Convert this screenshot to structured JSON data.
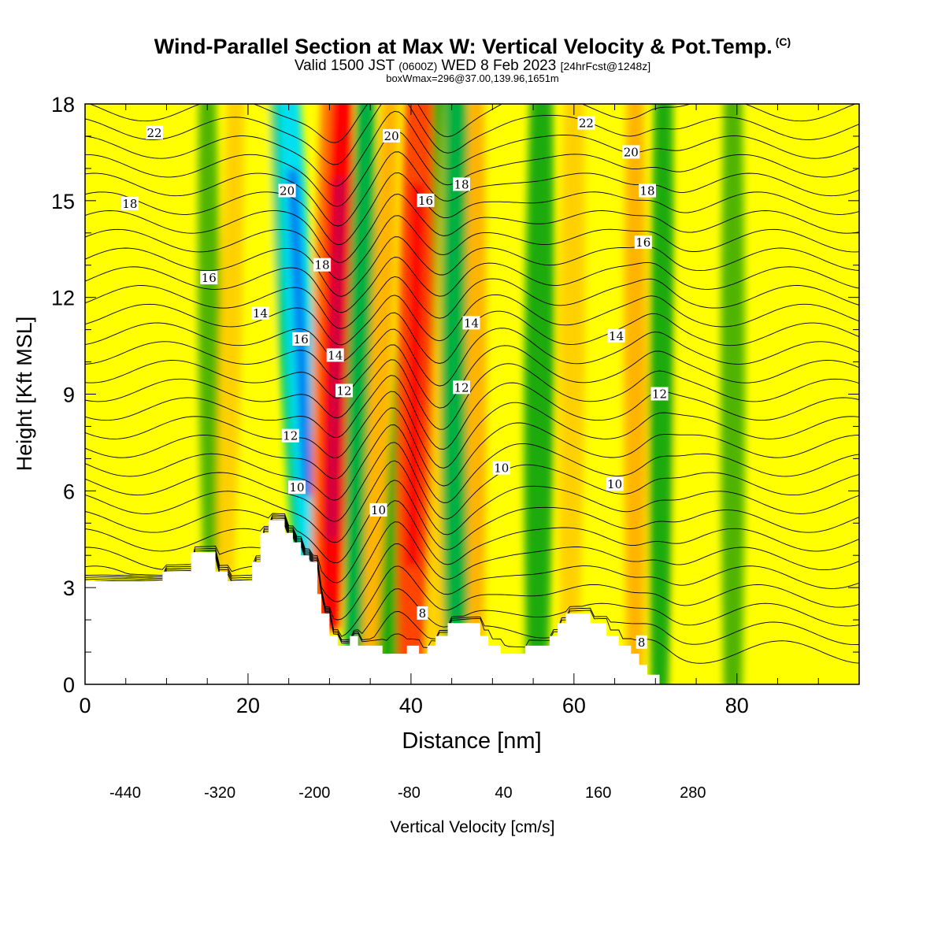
{
  "header": {
    "title": "Wind-Parallel Section at Max W: Vertical Velocity & Pot.Temp.",
    "copyright": "(C)",
    "valid_main": "Valid 1500 JST",
    "valid_utc": "(0600Z)",
    "valid_date": "WED 8 Feb 2023",
    "forecast": "[24hrFcst@1248z]",
    "boxinfo": "boxWmax=296@37.00,139.96,1651m"
  },
  "chart_data": {
    "type": "heatmap",
    "xlabel": "Distance [nm]",
    "ylabel": "Height [Kft MSL]",
    "xlim": [
      0,
      95
    ],
    "ylim": [
      0,
      18
    ],
    "x_ticks": [
      "0",
      "20",
      "40",
      "60",
      "80"
    ],
    "x_tick_values": [
      0,
      20,
      40,
      60,
      80
    ],
    "y_ticks": [
      "0",
      "3",
      "6",
      "9",
      "12",
      "15",
      "18"
    ],
    "y_tick_values": [
      0,
      3,
      6,
      9,
      12,
      15,
      18
    ],
    "colorbar": {
      "label": "Vertical Velocity [cm/s]",
      "ticks": [
        "-440",
        "-320",
        "-200",
        "-80",
        "40",
        "160",
        "280"
      ],
      "min": -440,
      "max": 320,
      "step": 40,
      "colors": [
        "#0000ee",
        "#0040f0",
        "#0078f0",
        "#00aaf0",
        "#00e0f0",
        "#00dcb8",
        "#00cc78",
        "#00b040",
        "#1eaa10",
        "#50b400",
        "#80cc00",
        "#c8e600",
        "#ffff00",
        "#ffd000",
        "#ffb400",
        "#ff9800",
        "#ff7800",
        "#ff4400",
        "#ff0000",
        "#cc0040",
        "#990060",
        "#660099"
      ]
    },
    "terrain_kft": [
      [
        0,
        3.2
      ],
      [
        9.5,
        3.2
      ],
      [
        9.5,
        3.5
      ],
      [
        13,
        3.5
      ],
      [
        13,
        4.1
      ],
      [
        16,
        4.1
      ],
      [
        16,
        3.5
      ],
      [
        17.5,
        3.5
      ],
      [
        17.5,
        3.2
      ],
      [
        20.5,
        3.2
      ],
      [
        20.5,
        3.8
      ],
      [
        21.5,
        3.8
      ],
      [
        21.5,
        4.7
      ],
      [
        22.5,
        4.7
      ],
      [
        22.5,
        5.1
      ],
      [
        24.5,
        5.1
      ],
      [
        24.5,
        4.7
      ],
      [
        25.5,
        4.7
      ],
      [
        25.5,
        4.4
      ],
      [
        26.5,
        4.4
      ],
      [
        26.5,
        4.0
      ],
      [
        27.5,
        4.0
      ],
      [
        27.5,
        3.8
      ],
      [
        28.5,
        3.8
      ],
      [
        28.5,
        2.8
      ],
      [
        29,
        2.8
      ],
      [
        29,
        2.2
      ],
      [
        30,
        2.2
      ],
      [
        30,
        1.5
      ],
      [
        31,
        1.5
      ],
      [
        31,
        1.2
      ],
      [
        32.5,
        1.2
      ],
      [
        32.5,
        1.5
      ],
      [
        33.5,
        1.5
      ],
      [
        33.5,
        1.2
      ],
      [
        36.5,
        1.2
      ],
      [
        36.5,
        0.95
      ],
      [
        39.5,
        0.95
      ],
      [
        39.5,
        1.2
      ],
      [
        41,
        1.2
      ],
      [
        41,
        0.95
      ],
      [
        42,
        0.95
      ],
      [
        42,
        1.2
      ],
      [
        43,
        1.2
      ],
      [
        43,
        1.5
      ],
      [
        44.5,
        1.5
      ],
      [
        44.5,
        1.9
      ],
      [
        48.5,
        1.9
      ],
      [
        48.5,
        1.5
      ],
      [
        49.5,
        1.5
      ],
      [
        49.5,
        1.2
      ],
      [
        51,
        1.2
      ],
      [
        51,
        0.95
      ],
      [
        54,
        0.95
      ],
      [
        54,
        1.2
      ],
      [
        57,
        1.2
      ],
      [
        57,
        1.5
      ],
      [
        58,
        1.5
      ],
      [
        58,
        1.9
      ],
      [
        59,
        1.9
      ],
      [
        59,
        2.2
      ],
      [
        62,
        2.2
      ],
      [
        62,
        1.9
      ],
      [
        64,
        1.9
      ],
      [
        64,
        1.5
      ],
      [
        65.5,
        1.5
      ],
      [
        65.5,
        1.2
      ],
      [
        67,
        1.2
      ],
      [
        67,
        0.95
      ],
      [
        68,
        0.95
      ],
      [
        68,
        0.6
      ],
      [
        69,
        0.6
      ],
      [
        69,
        0.3
      ],
      [
        70.5,
        0.3
      ],
      [
        70.5,
        0
      ],
      [
        95,
        0
      ]
    ],
    "velocity_bands": [
      {
        "x_base": 15.5,
        "x_top": 15,
        "w": 1.2,
        "v": -80
      },
      {
        "x_base": 17.2,
        "x_top": 18.5,
        "w": 1.2,
        "v": 80
      },
      {
        "x_base": 20.5,
        "x_top": 22.5,
        "w": 1.3,
        "v": 60
      },
      {
        "x_base": 27.0,
        "x_top": 24.0,
        "w": 1.6,
        "v": -170
      },
      {
        "x_base": 27.8,
        "x_top": 25.0,
        "w": 1.5,
        "v": -280
      },
      {
        "x_base": 29.3,
        "x_top": 30.5,
        "w": 1.7,
        "v": 220
      },
      {
        "x_base": 30.0,
        "x_top": 31.6,
        "w": 1.5,
        "v": 300
      },
      {
        "x_base": 33.0,
        "x_top": 34.5,
        "w": 1.4,
        "v": -150
      },
      {
        "x_base": 35.0,
        "x_top": 37.5,
        "w": 1.2,
        "v": 120
      },
      {
        "x_base": 37.5,
        "x_top": 43.0,
        "w": 2.0,
        "v": -100
      },
      {
        "x_base": 40.0,
        "x_top": 41.0,
        "w": 1.9,
        "v": 250
      },
      {
        "x_base": 43.0,
        "x_top": 45.0,
        "w": 1.1,
        "v": 100
      },
      {
        "x_base": 45.5,
        "x_top": 45.5,
        "w": 1.6,
        "v": -160
      },
      {
        "x_base": 48.0,
        "x_top": 48.0,
        "w": 1.1,
        "v": 120
      },
      {
        "x_base": 55.5,
        "x_top": 56.0,
        "w": 1.6,
        "v": -110
      },
      {
        "x_base": 59.5,
        "x_top": 60.0,
        "w": 1.4,
        "v": 80
      },
      {
        "x_base": 67.5,
        "x_top": 67.5,
        "w": 1.2,
        "v": 140
      },
      {
        "x_base": 70.5,
        "x_top": 71.0,
        "w": 1.3,
        "v": -90
      },
      {
        "x_base": 74.0,
        "x_top": 75.0,
        "w": 1.5,
        "v": 70
      },
      {
        "x_base": 79.5,
        "x_top": 79.5,
        "w": 1.3,
        "v": -60
      },
      {
        "x_base": 84.0,
        "x_top": 84.5,
        "w": 1.5,
        "v": 60
      },
      {
        "x_base": 92.0,
        "x_top": 92.0,
        "w": 1.5,
        "v": 70
      }
    ],
    "contour_labels": [
      {
        "text": "22",
        "x": 8.5,
        "y": 17.1
      },
      {
        "text": "18",
        "x": 5.5,
        "y": 14.9
      },
      {
        "text": "16",
        "x": 15.2,
        "y": 12.6
      },
      {
        "text": "14",
        "x": 21.5,
        "y": 11.5
      },
      {
        "text": "20",
        "x": 24.8,
        "y": 15.3
      },
      {
        "text": "18",
        "x": 29.1,
        "y": 13.0
      },
      {
        "text": "16",
        "x": 26.5,
        "y": 10.7
      },
      {
        "text": "14",
        "x": 30.7,
        "y": 10.2
      },
      {
        "text": "12",
        "x": 31.8,
        "y": 9.1
      },
      {
        "text": "12",
        "x": 25.2,
        "y": 7.7
      },
      {
        "text": "10",
        "x": 26.0,
        "y": 6.1
      },
      {
        "text": "20",
        "x": 37.6,
        "y": 17.0
      },
      {
        "text": "16",
        "x": 41.8,
        "y": 15.0
      },
      {
        "text": "18",
        "x": 46.2,
        "y": 15.5
      },
      {
        "text": "14",
        "x": 47.4,
        "y": 11.2
      },
      {
        "text": "12",
        "x": 46.2,
        "y": 9.2
      },
      {
        "text": "10",
        "x": 36.0,
        "y": 5.4
      },
      {
        "text": "10",
        "x": 51.1,
        "y": 6.7
      },
      {
        "text": "8",
        "x": 41.4,
        "y": 2.2
      },
      {
        "text": "22",
        "x": 61.5,
        "y": 17.4
      },
      {
        "text": "20",
        "x": 67.0,
        "y": 16.5
      },
      {
        "text": "18",
        "x": 69.0,
        "y": 15.3
      },
      {
        "text": "16",
        "x": 68.5,
        "y": 13.7
      },
      {
        "text": "14",
        "x": 65.2,
        "y": 10.8
      },
      {
        "text": "12",
        "x": 70.5,
        "y": 9.0
      },
      {
        "text": "10",
        "x": 65.0,
        "y": 6.2
      },
      {
        "text": "8",
        "x": 68.3,
        "y": 1.3
      }
    ]
  }
}
